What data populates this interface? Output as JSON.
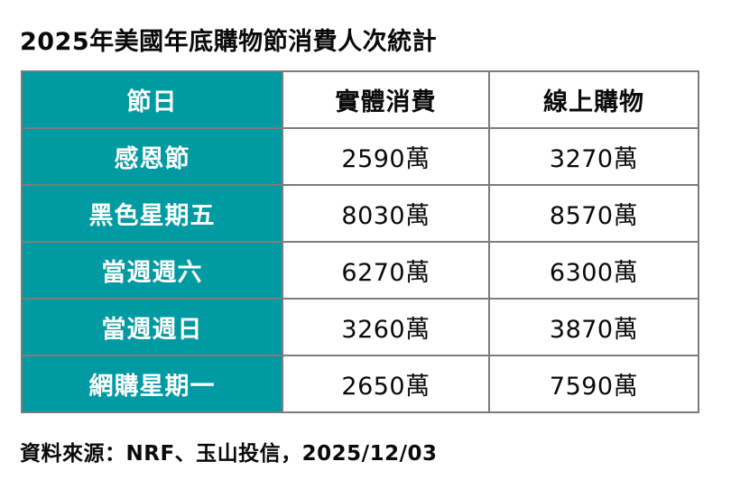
{
  "title": "2025年美國年底購物節消費人次統計",
  "source_note": "資料來源：NRF、玉山投信，2025/12/03",
  "colors": {
    "accent_teal": "#009aa2",
    "border_gray": "#7c7c7c",
    "text_black": "#0a0a0a",
    "background": "#ffffff"
  },
  "chart_data": {
    "type": "table",
    "title": "2025年美國年底購物節消費人次統計",
    "columns": [
      "節日",
      "實體消費",
      "線上購物"
    ],
    "rows": [
      [
        "感恩節",
        "2590萬",
        "3270萬"
      ],
      [
        "黑色星期五",
        "8030萬",
        "8570萬"
      ],
      [
        "當週週六",
        "6270萬",
        "6300萬"
      ],
      [
        "當週週日",
        "3260萬",
        "3870萬"
      ],
      [
        "網購星期一",
        "2650萬",
        "7590萬"
      ]
    ],
    "categories": [
      "感恩節",
      "黑色星期五",
      "當週週六",
      "當週週日",
      "網購星期一"
    ],
    "series": [
      {
        "name": "實體消費",
        "values": [
          2590,
          8030,
          6270,
          3260,
          2650
        ]
      },
      {
        "name": "線上購物",
        "values": [
          3270,
          8570,
          6300,
          3870,
          7590
        ]
      }
    ],
    "unit": "萬",
    "source": "資料來源：NRF、玉山投信，2025/12/03",
    "layout_hints": {
      "first_column_style": "teal background, white bold text",
      "header_row_style": "white background, black bold text (except first cell teal)",
      "grid": "2px gray borders on all cells"
    }
  }
}
